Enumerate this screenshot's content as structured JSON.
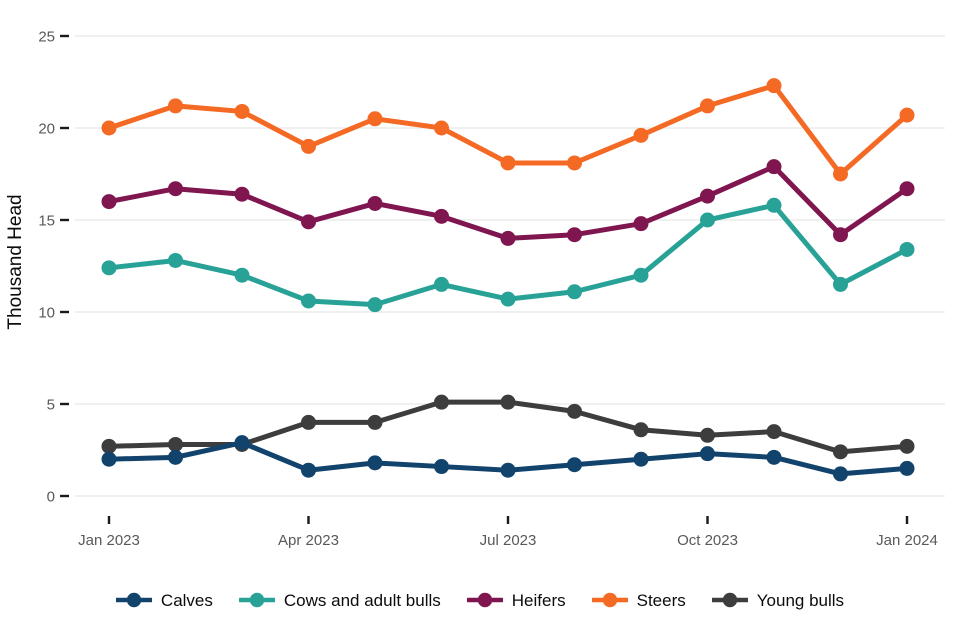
{
  "chart_data": {
    "type": "line",
    "title": "",
    "xlabel": "",
    "ylabel": "Thousand Head",
    "ylim": [
      0,
      25
    ],
    "y_ticks": [
      0,
      5,
      10,
      15,
      20,
      25
    ],
    "grid": "horizontal-gridlines-on",
    "legend_position": "bottom",
    "categories": [
      "Jan 2023",
      "Feb 2023",
      "Mar 2023",
      "Apr 2023",
      "May 2023",
      "Jun 2023",
      "Jul 2023",
      "Aug 2023",
      "Sep 2023",
      "Oct 2023",
      "Nov 2023",
      "Dec 2023",
      "Jan 2024"
    ],
    "x_ticks": [
      {
        "index": 0,
        "label": "Jan 2023"
      },
      {
        "index": 3,
        "label": "Apr 2023"
      },
      {
        "index": 6,
        "label": "Jul 2023"
      },
      {
        "index": 9,
        "label": "Oct 2023"
      },
      {
        "index": 12,
        "label": "Jan 2024"
      }
    ],
    "series": [
      {
        "name": "Calves",
        "color": "#12436D",
        "values": [
          2.0,
          2.1,
          2.9,
          1.4,
          1.8,
          1.6,
          1.4,
          1.7,
          2.0,
          2.3,
          2.1,
          1.2,
          1.5
        ]
      },
      {
        "name": "Cows and adult bulls",
        "color": "#28A197",
        "values": [
          12.4,
          12.8,
          12.0,
          10.6,
          10.4,
          11.5,
          10.7,
          11.1,
          12.0,
          15.0,
          15.8,
          11.5,
          13.4
        ]
      },
      {
        "name": "Heifers",
        "color": "#801650",
        "values": [
          16.0,
          16.7,
          16.4,
          14.9,
          15.9,
          15.2,
          14.0,
          14.2,
          14.8,
          16.3,
          17.9,
          14.2,
          16.7
        ]
      },
      {
        "name": "Steers",
        "color": "#F46A25",
        "values": [
          20.0,
          21.2,
          20.9,
          19.0,
          20.5,
          20.0,
          18.1,
          18.1,
          19.6,
          21.2,
          22.3,
          17.5,
          20.7
        ]
      },
      {
        "name": "Young bulls",
        "color": "#3D3D3D",
        "values": [
          2.7,
          2.8,
          2.8,
          4.0,
          4.0,
          5.1,
          5.1,
          4.6,
          3.6,
          3.3,
          3.5,
          2.4,
          2.7
        ]
      }
    ],
    "style": {
      "background": "#ffffff",
      "gridline_color": "#e6e6e6",
      "axis_tick_color": "#1a1a1a",
      "tick_label_color": "#595959",
      "text_color": "#0b0c0c"
    }
  }
}
